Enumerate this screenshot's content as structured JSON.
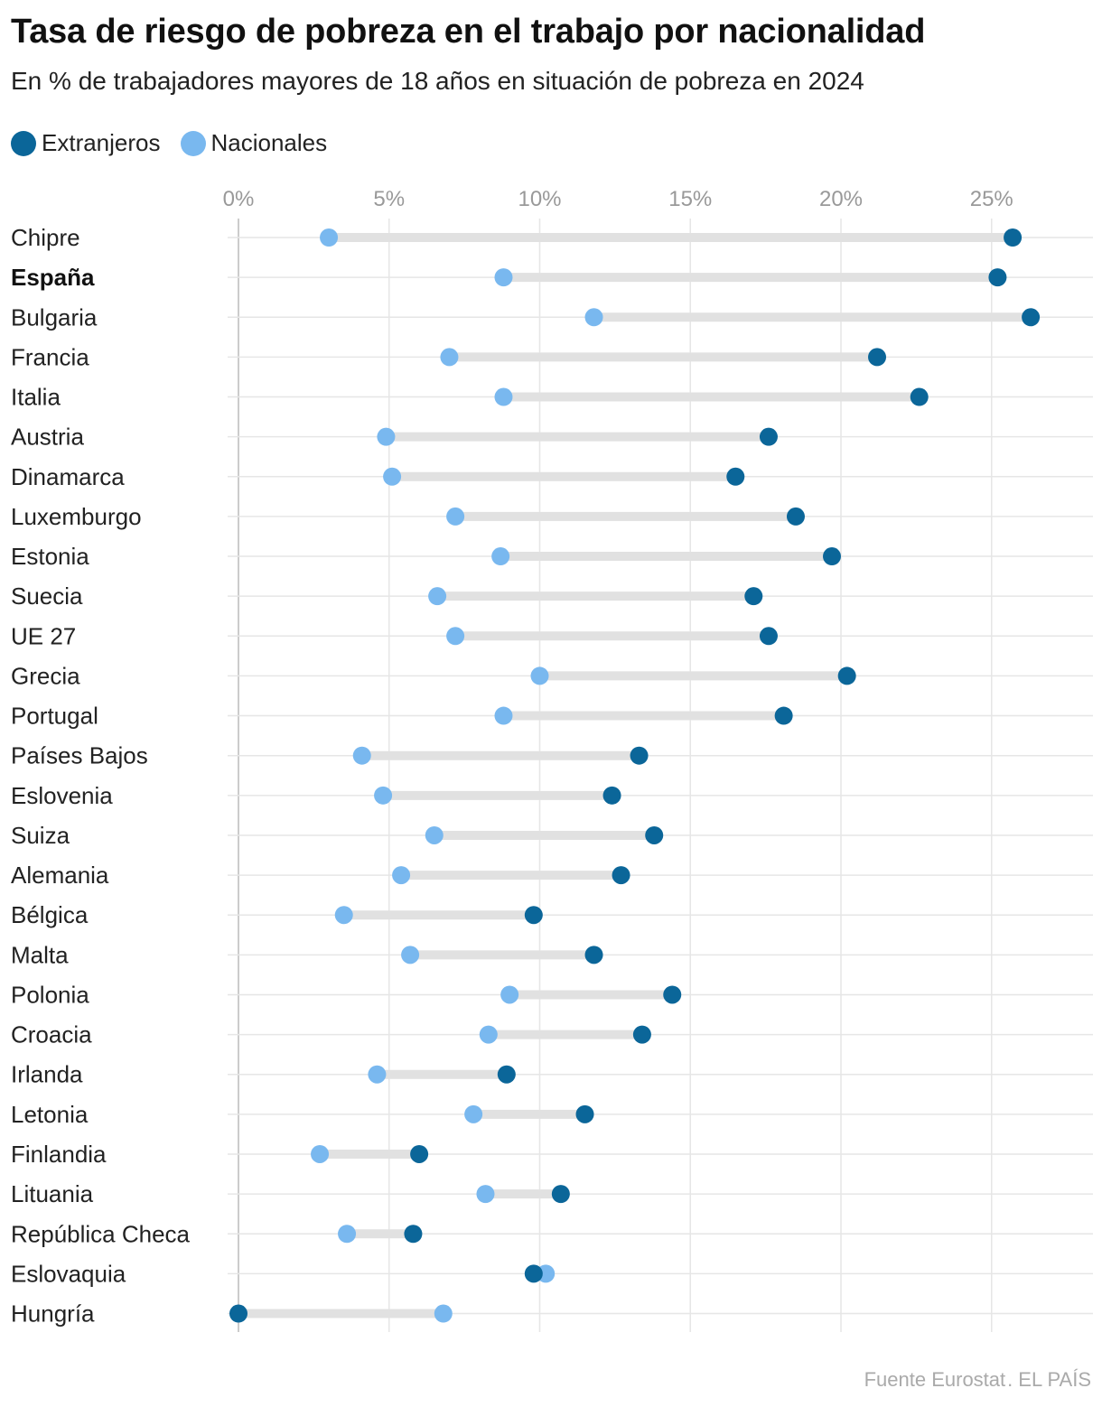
{
  "title": "Tasa de riesgo de pobreza en el trabajo por nacionalidad",
  "subtitle": "En % de trabajadores mayores de 18 años en situación de pobreza en 2024",
  "legend": {
    "foreign_label": "Extranjeros",
    "national_label": "Nacionales"
  },
  "source": {
    "text": "Fuente Eurostat",
    "separator": ".",
    "brand": "EL PAÍS"
  },
  "colors": {
    "foreign": "#0b6699",
    "national": "#79b8ef",
    "connector": "#e1e1e1",
    "grid": "#e6e6e6",
    "baseline": "#cccccc"
  },
  "chart_data": {
    "type": "dot-plot",
    "unit": "%",
    "xlim": [
      0,
      28
    ],
    "x_ticks": [
      "0%",
      "5%",
      "10%",
      "15%",
      "20%",
      "25%"
    ],
    "x_tick_values": [
      0,
      5,
      10,
      15,
      20,
      25
    ],
    "grid": true,
    "legend_placement": "top-left",
    "series": [
      {
        "name": "Extranjeros",
        "key": "foreign"
      },
      {
        "name": "Nacionales",
        "key": "national"
      }
    ],
    "rows": [
      {
        "country": "Chipre",
        "foreign": 25.7,
        "national": 3.0
      },
      {
        "country": "España",
        "foreign": 25.2,
        "national": 8.8,
        "highlight": true
      },
      {
        "country": "Bulgaria",
        "foreign": 26.3,
        "national": 11.8
      },
      {
        "country": "Francia",
        "foreign": 21.2,
        "national": 7.0
      },
      {
        "country": "Italia",
        "foreign": 22.6,
        "national": 8.8
      },
      {
        "country": "Austria",
        "foreign": 17.6,
        "national": 4.9
      },
      {
        "country": "Dinamarca",
        "foreign": 16.5,
        "national": 5.1
      },
      {
        "country": "Luxemburgo",
        "foreign": 18.5,
        "national": 7.2
      },
      {
        "country": "Estonia",
        "foreign": 19.7,
        "national": 8.7
      },
      {
        "country": "Suecia",
        "foreign": 17.1,
        "national": 6.6
      },
      {
        "country": "UE 27",
        "foreign": 17.6,
        "national": 7.2
      },
      {
        "country": "Grecia",
        "foreign": 20.2,
        "national": 10.0
      },
      {
        "country": "Portugal",
        "foreign": 18.1,
        "national": 8.8
      },
      {
        "country": "Países Bajos",
        "foreign": 13.3,
        "national": 4.1
      },
      {
        "country": "Eslovenia",
        "foreign": 12.4,
        "national": 4.8
      },
      {
        "country": "Suiza",
        "foreign": 13.8,
        "national": 6.5
      },
      {
        "country": "Alemania",
        "foreign": 12.7,
        "national": 5.4
      },
      {
        "country": "Bélgica",
        "foreign": 9.8,
        "national": 3.5
      },
      {
        "country": "Malta",
        "foreign": 11.8,
        "national": 5.7
      },
      {
        "country": "Polonia",
        "foreign": 14.4,
        "national": 9.0
      },
      {
        "country": "Croacia",
        "foreign": 13.4,
        "national": 8.3
      },
      {
        "country": "Irlanda",
        "foreign": 8.9,
        "national": 4.6
      },
      {
        "country": "Letonia",
        "foreign": 11.5,
        "national": 7.8
      },
      {
        "country": "Finlandia",
        "foreign": 6.0,
        "national": 2.7
      },
      {
        "country": "Lituania",
        "foreign": 10.7,
        "national": 8.2
      },
      {
        "country": "República Checa",
        "foreign": 5.8,
        "national": 3.6
      },
      {
        "country": "Eslovaquia",
        "foreign": 9.8,
        "national": 10.2
      },
      {
        "country": "Hungría",
        "foreign": 0.0,
        "national": 6.8
      }
    ]
  }
}
